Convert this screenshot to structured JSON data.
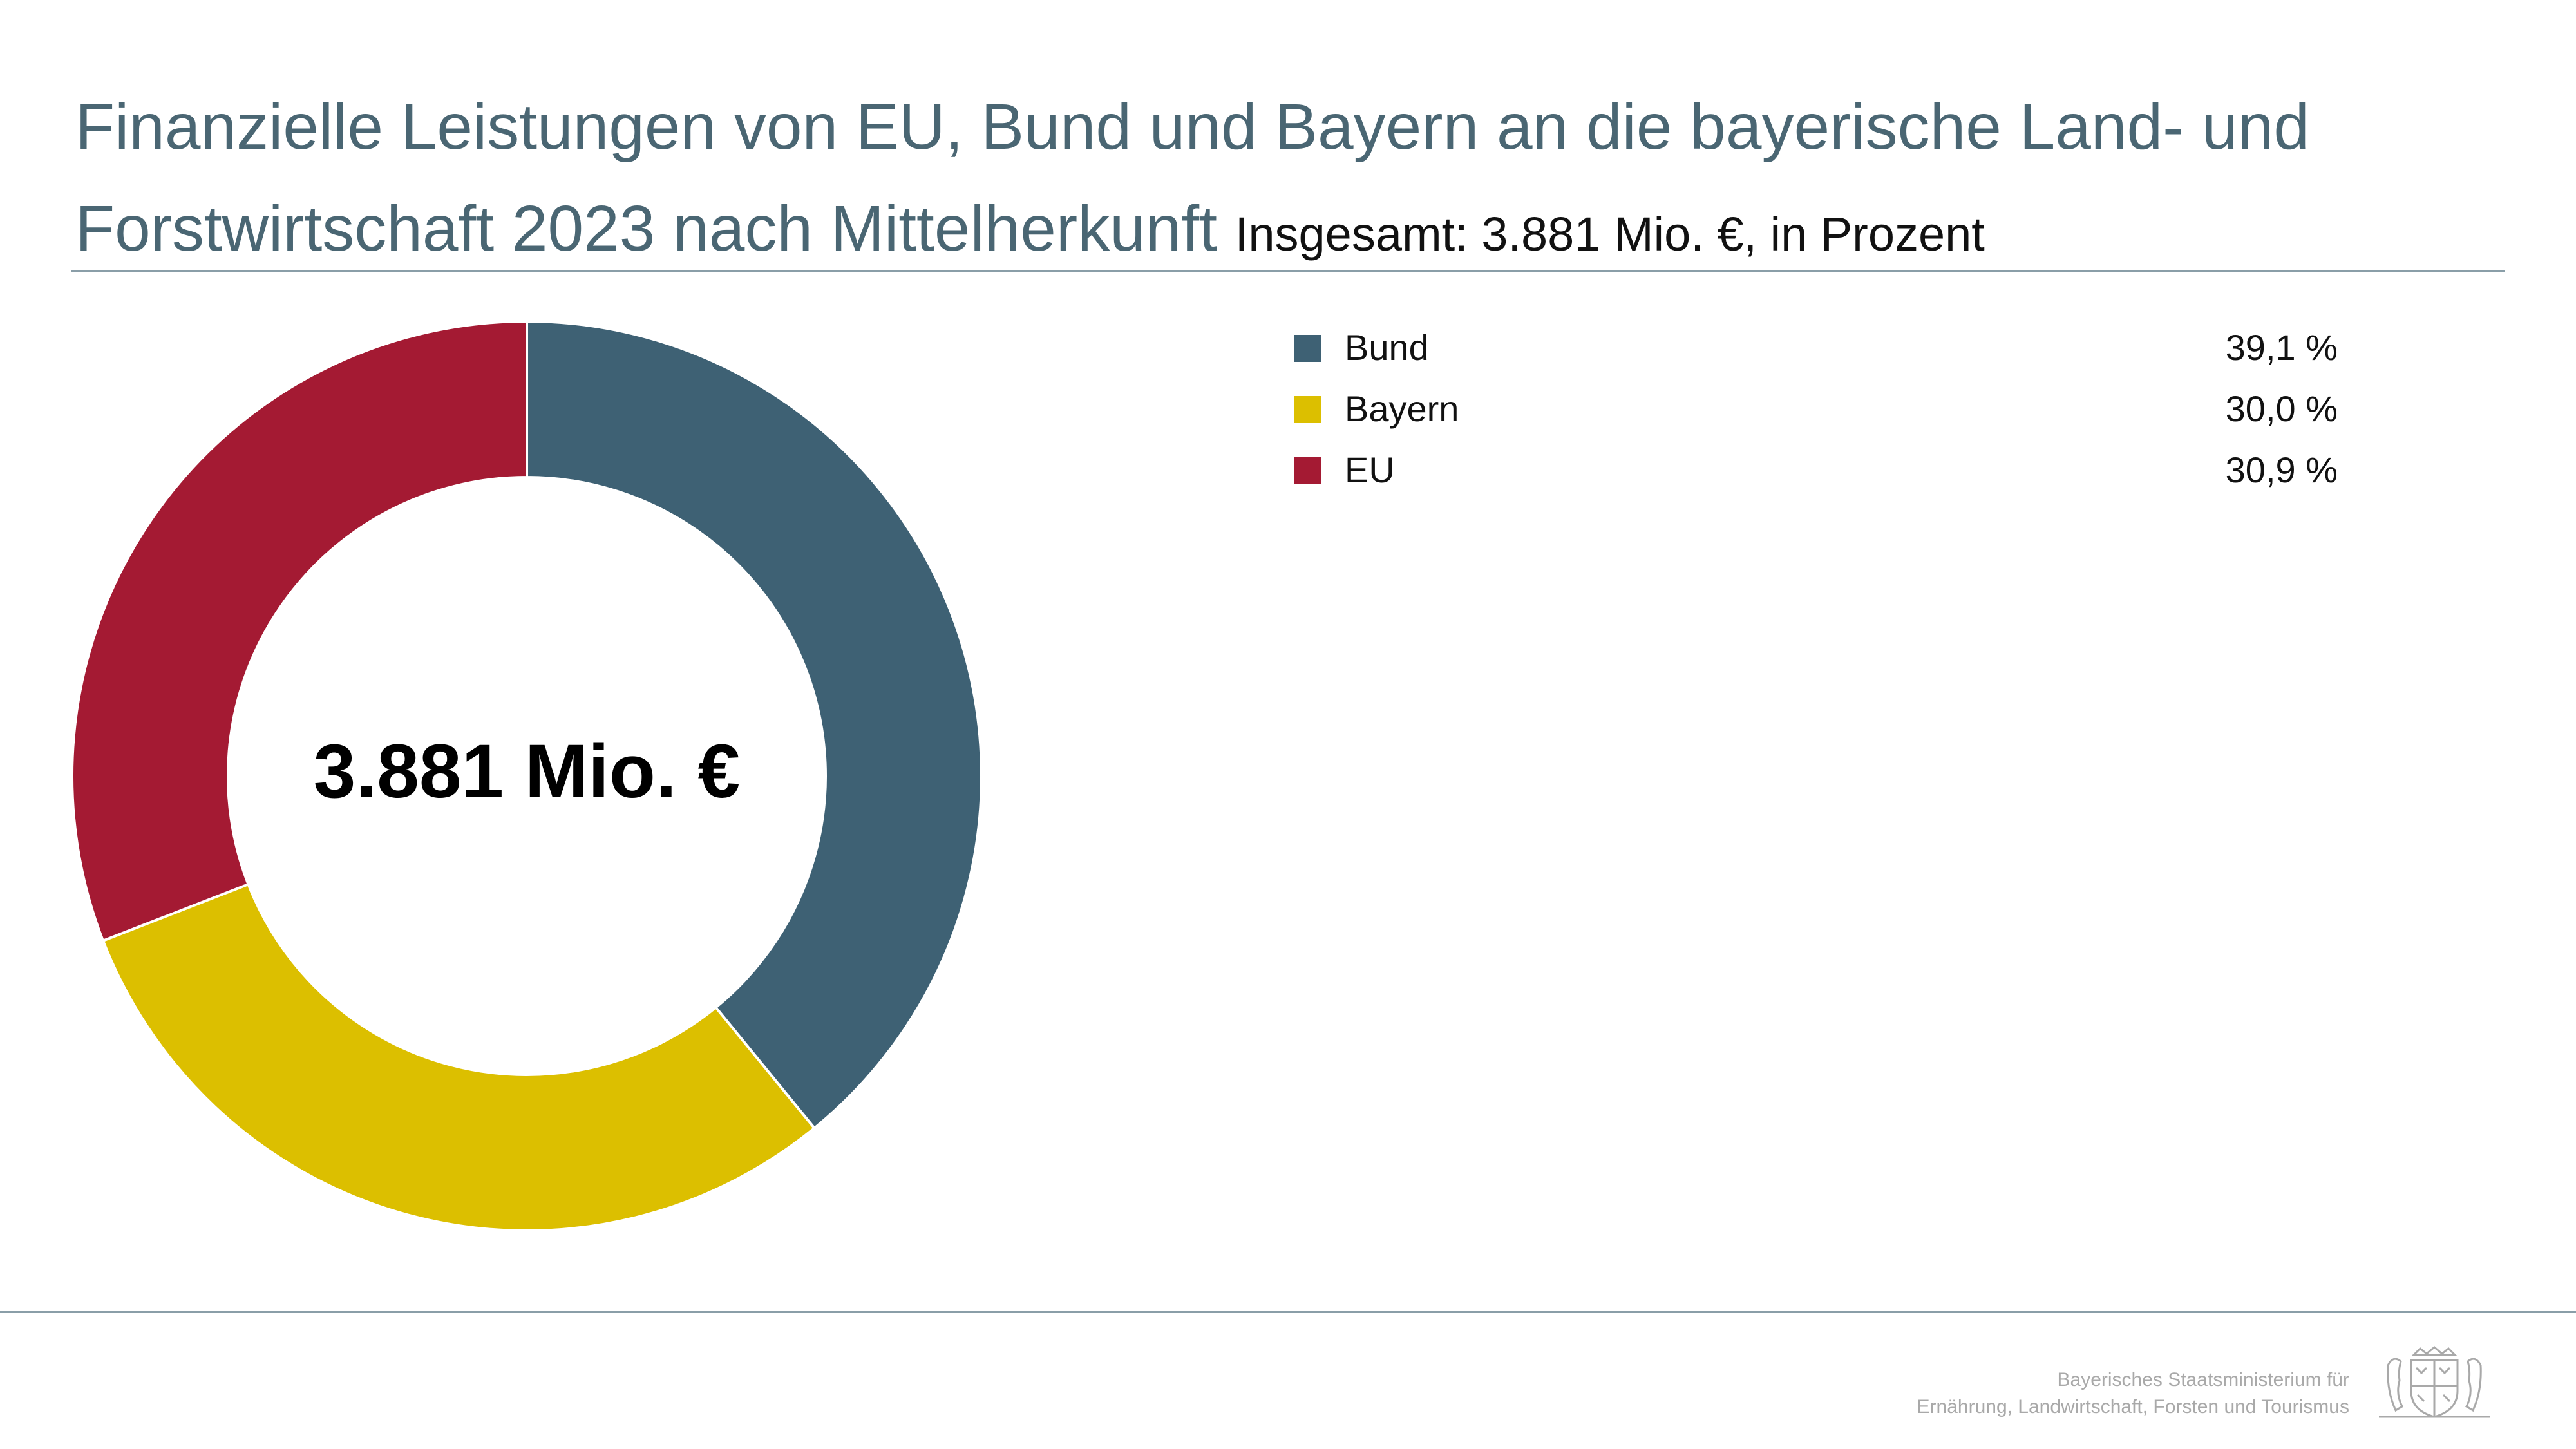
{
  "header": {
    "title": "Finanzielle Leistungen von EU, Bund und Bayern an die bayerische Land- und Forstwirtschaft 2023 nach Mittelherkunft",
    "subtitle": "Insgesamt: 3.881 Mio. €, in Prozent"
  },
  "chart_data": {
    "type": "pie",
    "variant": "donut",
    "center_label": "3.881 Mio. €",
    "start_angle_deg": 0,
    "direction": "clockwise",
    "categories": [
      "Bund",
      "Bayern",
      "EU"
    ],
    "values": [
      39.1,
      30.0,
      30.9
    ],
    "value_labels": [
      "39,1 %",
      "30,0 %",
      "30,9 %"
    ],
    "colors": [
      "#3e6174",
      "#dcbf00",
      "#a41a33"
    ],
    "legend_position": "right"
  },
  "footer": {
    "line1": "Bayerisches Staatsministerium für",
    "line2": "Ernährung, Landwirtschaft, Forsten und Tourismus",
    "logo": "bavarian-coat-of-arms-icon"
  }
}
